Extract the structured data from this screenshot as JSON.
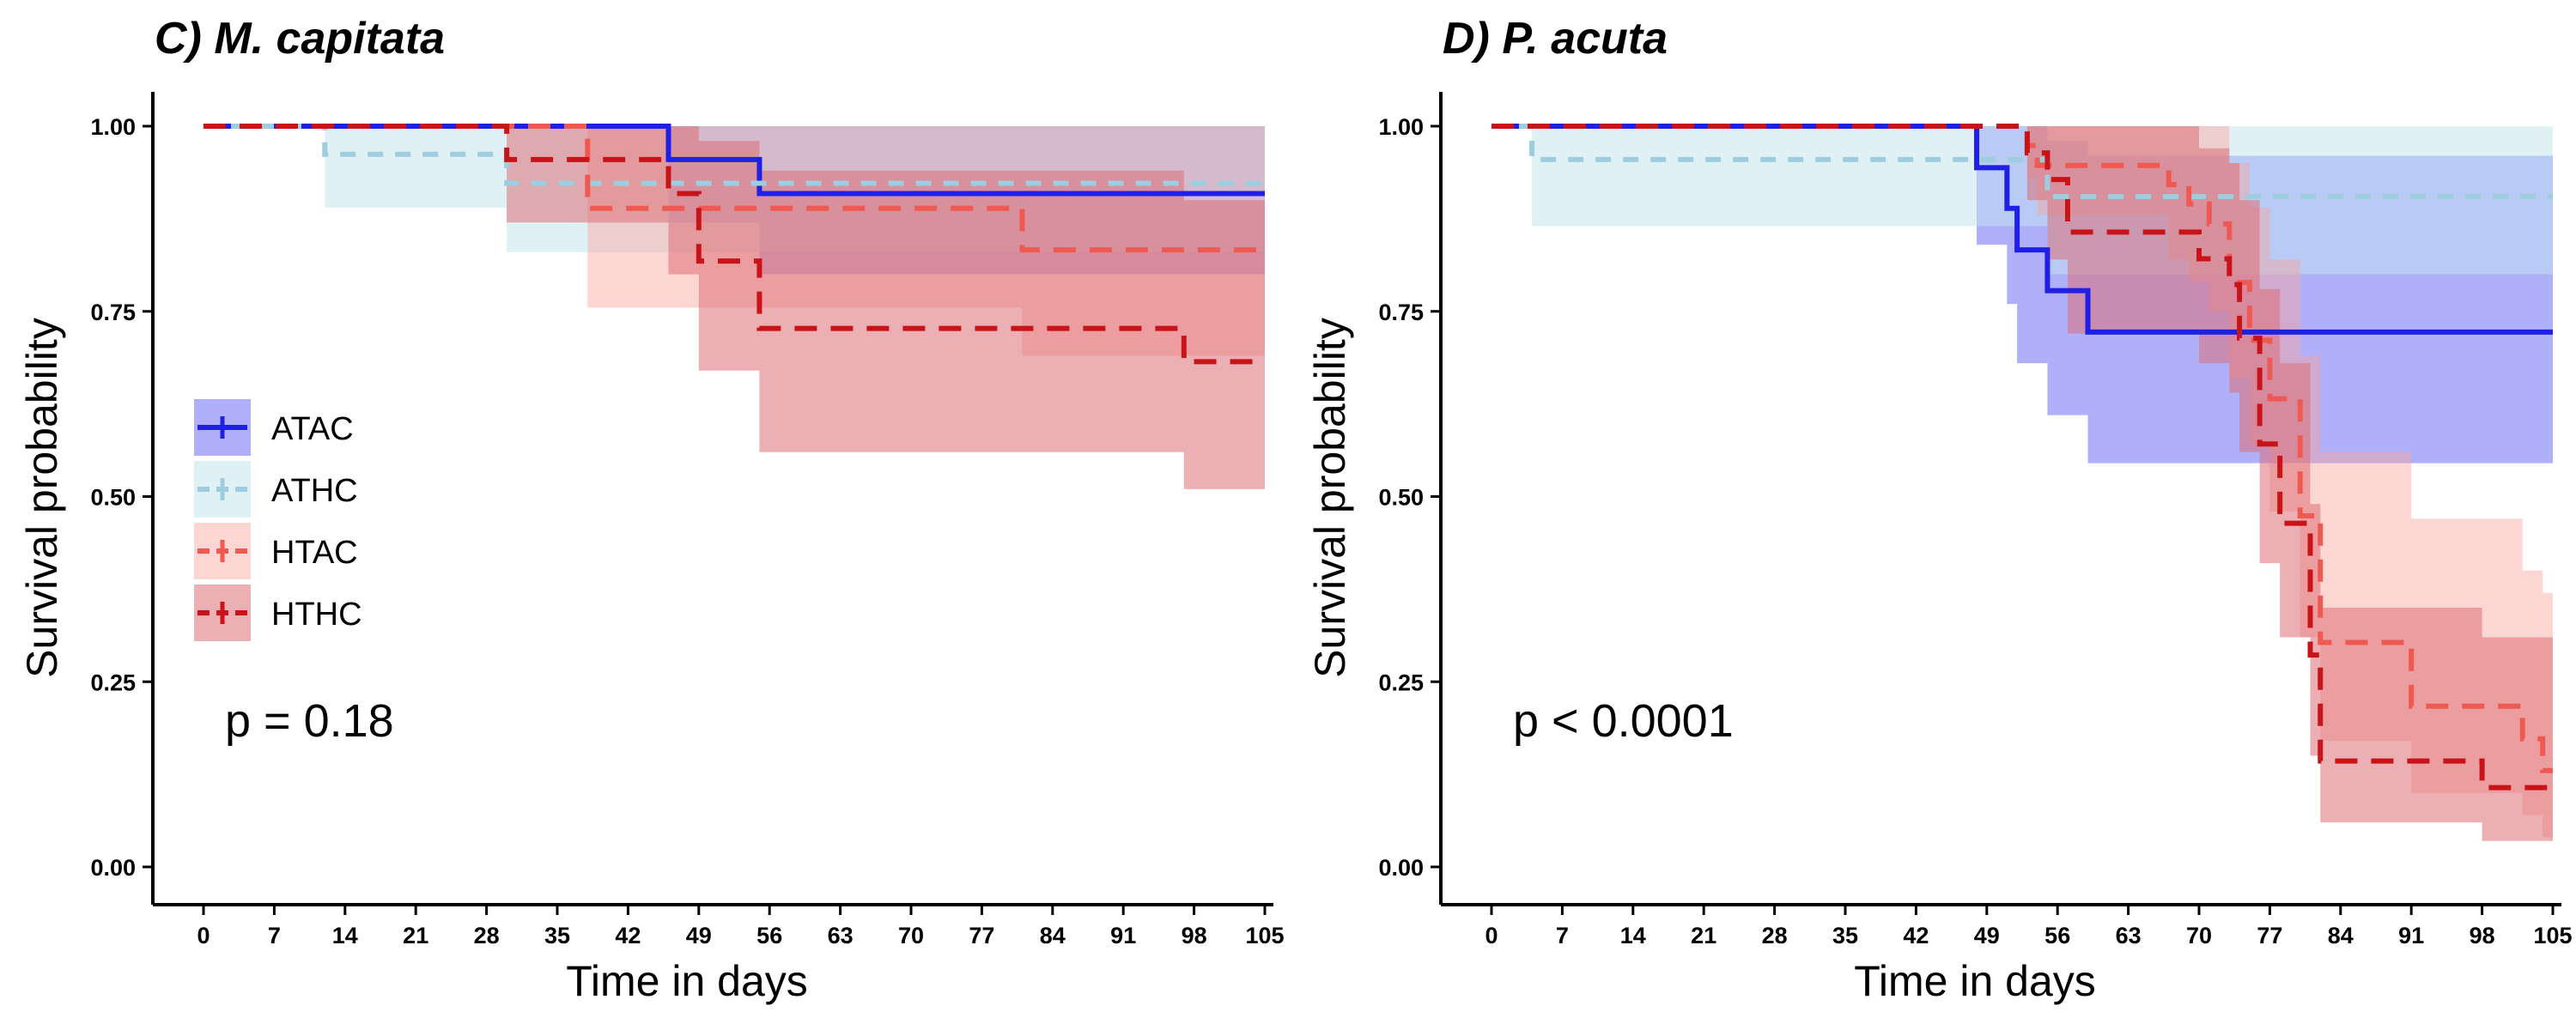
{
  "colors": {
    "ATAC": "#1f1fe6",
    "ATHC": "#9ecde0",
    "HTAC": "#ee5a52",
    "HTHC": "#c81418",
    "band_ATAC": "#6f6ff6",
    "band_ATHC": "#c2e3ee",
    "band_HTAC": "#f8a59c",
    "band_HTHC": "#dc7076"
  },
  "legend": {
    "items": [
      {
        "key": "ATAC",
        "label": "ATAC"
      },
      {
        "key": "ATHC",
        "label": "ATHC"
      },
      {
        "key": "HTAC",
        "label": "HTAC"
      },
      {
        "key": "HTHC",
        "label": "HTHC"
      }
    ]
  },
  "chart_data": [
    {
      "type": "line",
      "step": true,
      "title": "C) M. capitata",
      "xlabel": "Time in days",
      "ylabel": "Survival probability",
      "xlim": [
        0,
        105
      ],
      "ylim": [
        0,
        1
      ],
      "xticks": [
        "0",
        "7",
        "14",
        "21",
        "28",
        "35",
        "42",
        "49",
        "56",
        "63",
        "70",
        "77",
        "84",
        "91",
        "98",
        "105"
      ],
      "yticks": [
        "0.00",
        "0.25",
        "0.50",
        "0.75",
        "1.00"
      ],
      "annotation": "p = 0.18",
      "legend_position": "left",
      "series": [
        {
          "name": "ATAC",
          "x": [
            0,
            46,
            55,
            105
          ],
          "y": [
            1.0,
            0.955,
            0.909,
            0.909
          ],
          "lower": [
            1.0,
            0.87,
            0.8,
            0.8
          ],
          "upper": [
            1.0,
            1.0,
            1.0,
            1.0
          ]
        },
        {
          "name": "ATHC",
          "x": [
            0,
            12,
            30,
            105
          ],
          "y": [
            1.0,
            0.962,
            0.923,
            0.923
          ],
          "lower": [
            1.0,
            0.89,
            0.83,
            0.83
          ],
          "upper": [
            1.0,
            1.0,
            1.0,
            1.0
          ]
        },
        {
          "name": "HTAC",
          "x": [
            0,
            38,
            81,
            105
          ],
          "y": [
            1.0,
            0.889,
            0.833,
            0.833
          ],
          "lower": [
            1.0,
            0.755,
            0.69,
            0.69
          ],
          "upper": [
            1.0,
            1.0,
            1.0,
            1.0
          ]
        },
        {
          "name": "HTHC",
          "x": [
            0,
            30,
            46,
            49,
            55,
            97,
            105
          ],
          "y": [
            1.0,
            0.955,
            0.909,
            0.818,
            0.727,
            0.682,
            0.682
          ],
          "lower": [
            1.0,
            0.87,
            0.8,
            0.67,
            0.56,
            0.51,
            0.51
          ],
          "upper": [
            1.0,
            1.0,
            1.0,
            0.98,
            0.94,
            0.9,
            0.9
          ]
        }
      ]
    },
    {
      "type": "line",
      "step": true,
      "title": "D) P. acuta",
      "xlabel": "Time in days",
      "ylabel": "Survival probability",
      "xlim": [
        0,
        105
      ],
      "ylim": [
        0,
        1
      ],
      "xticks": [
        "0",
        "7",
        "14",
        "21",
        "28",
        "35",
        "42",
        "49",
        "56",
        "63",
        "70",
        "77",
        "84",
        "91",
        "98",
        "105"
      ],
      "yticks": [
        "0.00",
        "0.25",
        "0.50",
        "0.75",
        "1.00"
      ],
      "annotation": "p < 0.0001",
      "series": [
        {
          "name": "ATAC",
          "x": [
            0,
            48,
            51,
            52,
            55,
            59,
            105
          ],
          "y": [
            1.0,
            0.944,
            0.889,
            0.833,
            0.778,
            0.722,
            0.722
          ],
          "lower": [
            1.0,
            0.84,
            0.76,
            0.68,
            0.61,
            0.545,
            0.545
          ],
          "upper": [
            1.0,
            1.0,
            1.0,
            1.0,
            0.98,
            0.96,
            0.96
          ]
        },
        {
          "name": "ATHC",
          "x": [
            0,
            4,
            55,
            105
          ],
          "y": [
            1.0,
            0.955,
            0.905,
            0.905
          ],
          "lower": [
            1.0,
            0.865,
            0.8,
            0.8
          ],
          "upper": [
            1.0,
            1.0,
            1.0,
            1.0
          ]
        },
        {
          "name": "HTAC",
          "x": [
            0,
            53,
            54,
            67,
            69,
            71,
            73,
            75,
            77,
            80,
            82,
            91,
            95,
            99,
            102,
            104,
            105
          ],
          "y": [
            1.0,
            0.974,
            0.947,
            0.921,
            0.895,
            0.868,
            0.789,
            0.711,
            0.632,
            0.474,
            0.303,
            0.217,
            0.217,
            0.217,
            0.173,
            0.13,
            0.13
          ],
          "lower": [
            1.0,
            0.93,
            0.88,
            0.82,
            0.79,
            0.75,
            0.66,
            0.57,
            0.48,
            0.31,
            0.17,
            0.1,
            0.1,
            0.1,
            0.07,
            0.04,
            0.04
          ],
          "upper": [
            1.0,
            1.0,
            1.0,
            1.0,
            1.0,
            1.0,
            0.95,
            0.89,
            0.82,
            0.69,
            0.56,
            0.47,
            0.47,
            0.47,
            0.4,
            0.37,
            0.37
          ]
        },
        {
          "name": "HTHC",
          "x": [
            0,
            53,
            55,
            57,
            70,
            73,
            74,
            76,
            78,
            81,
            82,
            98,
            104,
            105
          ],
          "y": [
            1.0,
            0.964,
            0.928,
            0.857,
            0.821,
            0.786,
            0.714,
            0.571,
            0.464,
            0.286,
            0.143,
            0.107,
            0.107,
            0.107
          ],
          "lower": [
            1.0,
            0.9,
            0.82,
            0.72,
            0.68,
            0.64,
            0.56,
            0.41,
            0.31,
            0.15,
            0.06,
            0.035,
            0.035,
            0.035
          ],
          "upper": [
            1.0,
            1.0,
            1.0,
            1.0,
            0.97,
            0.95,
            0.9,
            0.78,
            0.68,
            0.49,
            0.35,
            0.31,
            0.31,
            0.31
          ]
        }
      ]
    }
  ]
}
